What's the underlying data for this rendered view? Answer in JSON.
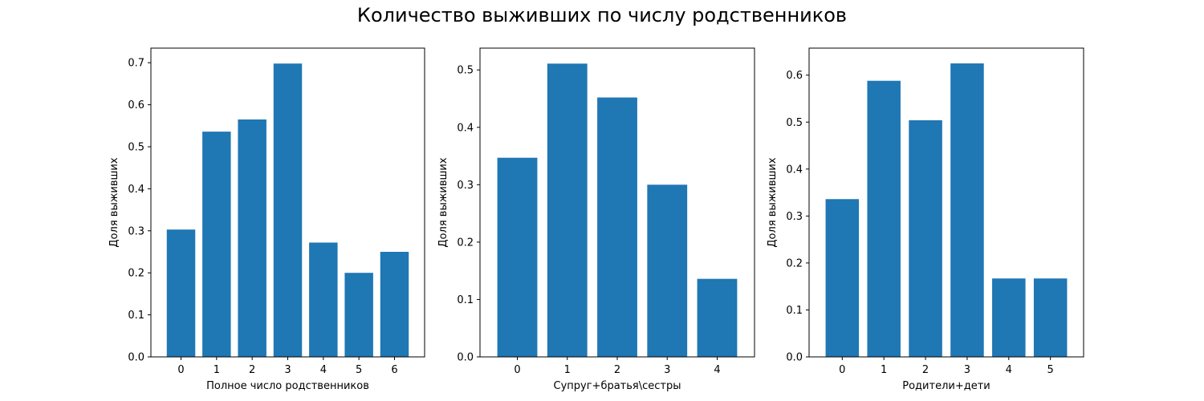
{
  "figure": {
    "title": "Количество выживших по числу родственников"
  },
  "colors": {
    "bar": "#1f77b4"
  },
  "chart_data": [
    {
      "type": "bar",
      "categories": [
        "0",
        "1",
        "2",
        "3",
        "4",
        "5",
        "6"
      ],
      "values": [
        0.303,
        0.536,
        0.565,
        0.698,
        0.272,
        0.2,
        0.25
      ],
      "xlabel": "Полное число родственников",
      "ylabel": "Доля выживших",
      "ylim": [
        0,
        0.7
      ],
      "yticks": [
        "0.0",
        "0.1",
        "0.2",
        "0.3",
        "0.4",
        "0.5",
        "0.6",
        "0.7"
      ]
    },
    {
      "type": "bar",
      "categories": [
        "0",
        "1",
        "2",
        "3",
        "4"
      ],
      "values": [
        0.347,
        0.511,
        0.452,
        0.3,
        0.136
      ],
      "xlabel": "Супруг+братья\\сестры",
      "ylabel": "Доля выживших",
      "ylim": [
        0,
        0.5
      ],
      "yticks": [
        "0.0",
        "0.1",
        "0.2",
        "0.3",
        "0.4",
        "0.5"
      ]
    },
    {
      "type": "bar",
      "categories": [
        "0",
        "1",
        "2",
        "3",
        "4",
        "5"
      ],
      "values": [
        0.336,
        0.588,
        0.504,
        0.625,
        0.167,
        0.167
      ],
      "xlabel": "Родители+дети",
      "ylabel": "Доля выживших",
      "ylim": [
        0,
        0.6
      ],
      "yticks": [
        "0.0",
        "0.1",
        "0.2",
        "0.3",
        "0.4",
        "0.5",
        "0.6"
      ]
    }
  ]
}
